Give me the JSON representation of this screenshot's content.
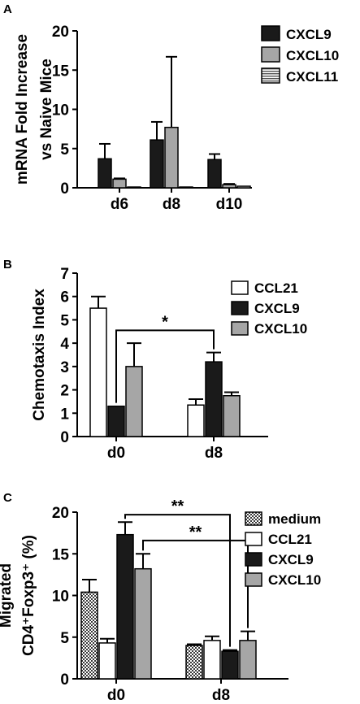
{
  "colors": {
    "black": "#1a1a1a",
    "gray": "#a6a6a6",
    "white": "#ffffff"
  },
  "chart_data": [
    {
      "panel": "A",
      "type": "bar",
      "ylabel": [
        "mRNA Fold Increase",
        "vs Naive Mice"
      ],
      "ylim": [
        0,
        20
      ],
      "yticks": [
        0,
        5,
        10,
        15,
        20
      ],
      "categories": [
        "d6",
        "d8",
        "d10"
      ],
      "legend_position": "top-right",
      "series": [
        {
          "name": "CXCL9",
          "fill": "black",
          "values": [
            3.7,
            6.1,
            3.6
          ],
          "errors": [
            1.9,
            2.3,
            0.7
          ]
        },
        {
          "name": "CXCL10",
          "fill": "gray",
          "values": [
            1.1,
            7.7,
            0.4
          ],
          "errors": [
            0.1,
            9.0,
            0.1
          ]
        },
        {
          "name": "CXCL11",
          "fill": "hstripe",
          "values": [
            0.1,
            0.1,
            0.2
          ],
          "errors": [
            0.0,
            0.0,
            0.0
          ]
        }
      ],
      "annotations": []
    },
    {
      "panel": "B",
      "type": "bar",
      "ylabel": [
        "Chemotaxis Index"
      ],
      "ylim": [
        0,
        7
      ],
      "yticks": [
        0,
        1,
        2,
        3,
        4,
        5,
        6,
        7
      ],
      "categories": [
        "d0",
        "d8"
      ],
      "legend_position": "top-right",
      "series": [
        {
          "name": "CCL21",
          "fill": "white",
          "values": [
            5.5,
            1.35
          ],
          "errors": [
            0.5,
            0.25
          ]
        },
        {
          "name": "CXCL9",
          "fill": "black",
          "values": [
            1.3,
            3.2
          ],
          "errors": [
            0.0,
            0.4
          ]
        },
        {
          "name": "CXCL10",
          "fill": "gray",
          "values": [
            3.0,
            1.75
          ],
          "errors": [
            1.0,
            0.15
          ]
        }
      ],
      "annotations": [
        {
          "label": "*",
          "from": [
            0,
            1
          ],
          "to": [
            1,
            1
          ],
          "bar_y": 4.55
        }
      ]
    },
    {
      "panel": "C",
      "type": "bar",
      "ylabel": [
        "Migrated",
        "CD4⁺Foxp3⁺ (%)"
      ],
      "ylim": [
        0,
        20
      ],
      "yticks": [
        0,
        5,
        10,
        15,
        20
      ],
      "categories": [
        "d0",
        "d8"
      ],
      "legend_position": "top-right",
      "series": [
        {
          "name": "medium",
          "fill": "check",
          "values": [
            10.4,
            4.0
          ],
          "errors": [
            1.5,
            0.15
          ]
        },
        {
          "name": "CCL21",
          "fill": "white",
          "values": [
            4.3,
            4.6
          ],
          "errors": [
            0.5,
            0.5
          ]
        },
        {
          "name": "CXCL9",
          "fill": "black",
          "values": [
            17.3,
            3.3
          ],
          "errors": [
            1.5,
            0.15
          ]
        },
        {
          "name": "CXCL10",
          "fill": "gray",
          "values": [
            13.2,
            4.6
          ],
          "errors": [
            1.8,
            1.1
          ]
        }
      ],
      "annotations": [
        {
          "label": "**",
          "from": [
            0,
            2
          ],
          "to": [
            1,
            2
          ],
          "bar_y": 19.7
        },
        {
          "label": "**",
          "from": [
            0,
            3
          ],
          "to": [
            1,
            3
          ],
          "bar_y": 16.6
        }
      ]
    }
  ]
}
